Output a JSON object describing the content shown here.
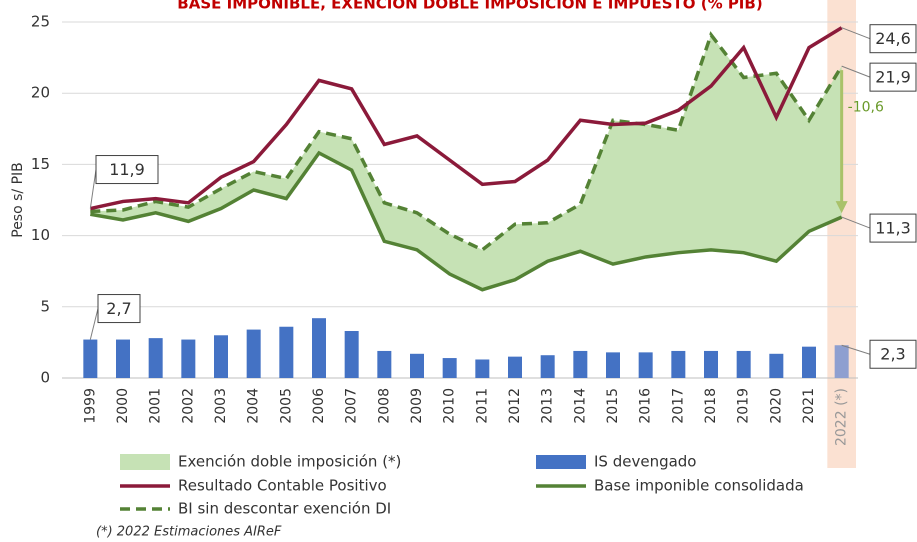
{
  "chart_data": {
    "type": "combo",
    "title": "BASE IMPONIBLE, EXENCIÓN DOBLE IMPOSICIÓN E IMPUESTO (% PIB)",
    "y_label": "Peso s/ PIB",
    "categories": [
      "1999",
      "2000",
      "2001",
      "2002",
      "2003",
      "2004",
      "2005",
      "2006",
      "2007",
      "2008",
      "2009",
      "2010",
      "2011",
      "2012",
      "2013",
      "2014",
      "2015",
      "2016",
      "2017",
      "2018",
      "2019",
      "2020",
      "2021",
      "2022 (*)"
    ],
    "ylim": [
      0,
      25
    ],
    "yticks": [
      0,
      5,
      10,
      15,
      20,
      25
    ],
    "grid": true,
    "fill_area": {
      "name": "Exención doble imposición (*)",
      "color": "#c6e2b5"
    },
    "series": [
      {
        "name": "IS devengado",
        "type": "bar",
        "color": "#4472c4",
        "values": [
          2.7,
          2.7,
          2.8,
          2.7,
          3.0,
          3.4,
          3.6,
          4.2,
          3.3,
          1.9,
          1.7,
          1.4,
          1.3,
          1.5,
          1.6,
          1.9,
          1.8,
          1.8,
          1.9,
          1.9,
          1.9,
          1.7,
          2.2,
          2.3
        ],
        "value_labels": [
          "2,7",
          null,
          null,
          null,
          null,
          null,
          null,
          null,
          null,
          null,
          null,
          null,
          null,
          null,
          null,
          null,
          null,
          null,
          null,
          null,
          null,
          null,
          null,
          "2,3"
        ]
      },
      {
        "name": "Base imponible consolidada",
        "type": "line",
        "color": "#548235",
        "values": [
          11.5,
          11.1,
          11.6,
          11.0,
          11.9,
          13.2,
          12.6,
          15.8,
          14.6,
          9.6,
          9.0,
          7.3,
          6.2,
          6.9,
          8.2,
          8.9,
          8.0,
          8.5,
          8.8,
          9.0,
          8.8,
          8.2,
          10.3,
          11.3
        ],
        "value_labels": [
          null,
          null,
          null,
          null,
          null,
          null,
          null,
          null,
          null,
          null,
          null,
          null,
          null,
          null,
          null,
          null,
          null,
          null,
          null,
          null,
          null,
          null,
          null,
          "11,3"
        ]
      },
      {
        "name": "BI sin descontar exención DI",
        "type": "line",
        "dashed": true,
        "color": "#548235",
        "values": [
          11.7,
          11.8,
          12.4,
          12.0,
          13.3,
          14.5,
          14.0,
          17.3,
          16.8,
          12.3,
          11.6,
          10.1,
          9.0,
          10.8,
          10.9,
          12.2,
          18.1,
          17.8,
          17.4,
          24.1,
          21.1,
          21.4,
          18.1,
          21.9
        ],
        "value_labels": [
          null,
          null,
          null,
          null,
          null,
          null,
          null,
          null,
          null,
          null,
          null,
          null,
          null,
          null,
          null,
          null,
          null,
          null,
          null,
          null,
          null,
          null,
          null,
          "21,9"
        ]
      },
      {
        "name": "Resultado Contable Positivo",
        "type": "line",
        "color": "#8b1a3a",
        "values": [
          11.9,
          12.4,
          12.6,
          12.3,
          14.1,
          15.2,
          17.8,
          20.9,
          20.3,
          16.4,
          17.0,
          15.3,
          13.6,
          13.8,
          15.3,
          18.1,
          17.8,
          17.9,
          18.8,
          20.5,
          23.2,
          18.3,
          23.2,
          24.6
        ],
        "value_labels": [
          "11,9",
          null,
          null,
          null,
          null,
          null,
          null,
          null,
          null,
          null,
          null,
          null,
          null,
          null,
          null,
          null,
          null,
          null,
          null,
          null,
          null,
          null,
          null,
          "24,6"
        ]
      }
    ],
    "annotation": "-10,6",
    "footnote": "(*) 2022 Estimaciones AIReF"
  }
}
